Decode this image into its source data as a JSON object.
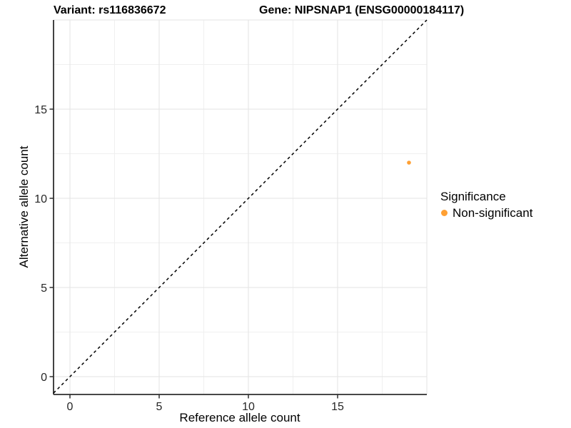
{
  "chart_data": {
    "type": "scatter",
    "title_left": "Variant: rs116836672",
    "title_right": "Gene: NIPSNAP1 (ENSG00000184117)",
    "xlabel": "Reference allele count",
    "ylabel": "Alternative allele count",
    "xticks": [
      0,
      5,
      10,
      15
    ],
    "yticks": [
      0,
      5,
      10,
      15
    ],
    "xlim": [
      -1,
      20
    ],
    "ylim": [
      -1,
      20
    ],
    "grid_major": [
      0,
      5,
      10,
      15,
      20
    ],
    "grid_minor": [
      2.5,
      7.5,
      12.5,
      17.5
    ],
    "grid": "on",
    "reference_line": {
      "type": "identity y=x",
      "style": "dashed",
      "color": "#000000"
    },
    "series": [
      {
        "name": "Non-significant",
        "color": "#FFA033",
        "points": [
          {
            "x": 19,
            "y": 12
          }
        ]
      }
    ],
    "legend": {
      "title": "Significance",
      "position": "right",
      "items": [
        {
          "label": "Non-significant",
          "color": "#FFA033"
        }
      ]
    },
    "style": {
      "background": "#ffffff",
      "grid_major_color": "#e3e3e3",
      "grid_minor_color": "#f0f0f0",
      "axis_line_color": "#2e2e2e",
      "tick_label_color": "#262626"
    }
  }
}
